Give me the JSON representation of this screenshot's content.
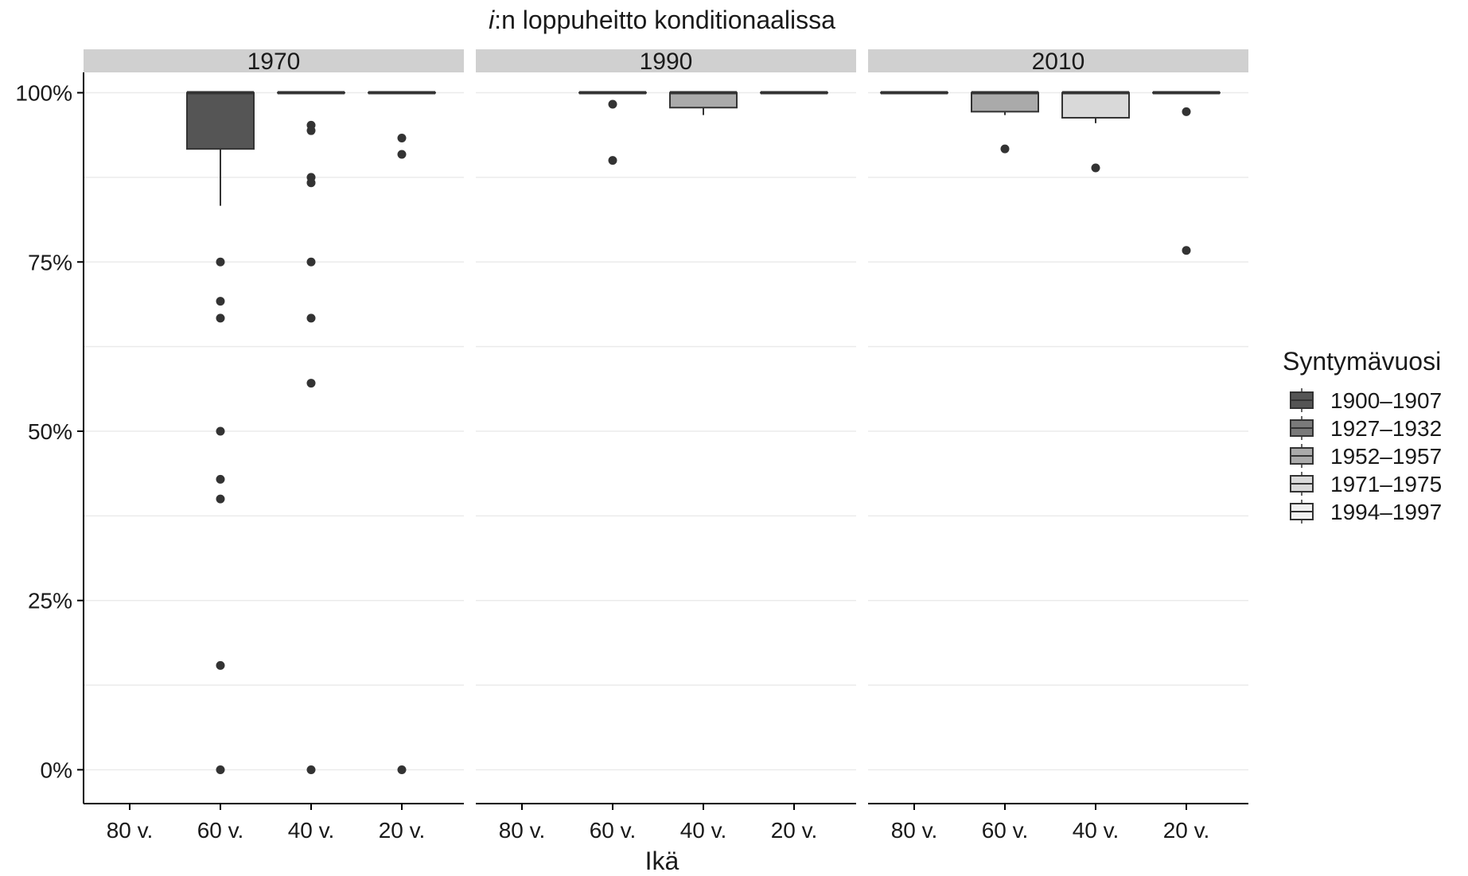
{
  "chart_data": {
    "type": "boxplot",
    "title_italic": "i",
    "title_rest": ":n loppuheitto konditionaalissa",
    "xlabel": "Ikä",
    "ylabel": "",
    "ylim": [
      -0.05,
      1.03
    ],
    "yticks": [
      0,
      0.25,
      0.5,
      0.75,
      1
    ],
    "ytick_labels": [
      "0%",
      "25%",
      "50%",
      "75%",
      "100%"
    ],
    "categories": [
      "80 v.",
      "60 v.",
      "40 v.",
      "20 v."
    ],
    "legend": {
      "title": "Syntymävuosi",
      "position": "right",
      "entries": [
        {
          "label": "1900–1907",
          "fill": "#555555"
        },
        {
          "label": "1927–1932",
          "fill": "#7a7a7a"
        },
        {
          "label": "1952–1957",
          "fill": "#aaaaaa"
        },
        {
          "label": "1971–1975",
          "fill": "#d9d9d9"
        },
        {
          "label": "1994–1997",
          "fill": "#f2f2f2"
        }
      ]
    },
    "panels": [
      {
        "label": "1970",
        "boxes": [
          {
            "category": "60 v.",
            "cohort": "1900–1907",
            "lower_whisker": 0.833,
            "q1": 0.917,
            "median": 1.0,
            "q3": 1.0,
            "upper_whisker": 1.0,
            "outliers": [
              0.75,
              0.692,
              0.667,
              0.5,
              0.429,
              0.4,
              0.154,
              0.0
            ]
          },
          {
            "category": "40 v.",
            "cohort": "1927–1932",
            "lower_whisker": 1.0,
            "q1": 1.0,
            "median": 1.0,
            "q3": 1.0,
            "upper_whisker": 1.0,
            "outliers": [
              0.952,
              0.944,
              0.875,
              0.867,
              0.75,
              0.667,
              0.571,
              0.0
            ]
          },
          {
            "category": "20 v.",
            "cohort": "1952–1957",
            "lower_whisker": 1.0,
            "q1": 1.0,
            "median": 1.0,
            "q3": 1.0,
            "upper_whisker": 1.0,
            "outliers": [
              0.933,
              0.909,
              0.0
            ]
          }
        ]
      },
      {
        "label": "1990",
        "boxes": [
          {
            "category": "60 v.",
            "cohort": "1927–1932",
            "lower_whisker": 1.0,
            "q1": 1.0,
            "median": 1.0,
            "q3": 1.0,
            "upper_whisker": 1.0,
            "outliers": [
              0.983,
              0.9
            ]
          },
          {
            "category": "40 v.",
            "cohort": "1952–1957",
            "lower_whisker": 0.967,
            "q1": 0.978,
            "median": 1.0,
            "q3": 1.0,
            "upper_whisker": 1.0,
            "outliers": []
          },
          {
            "category": "20 v.",
            "cohort": "1971–1975",
            "lower_whisker": 1.0,
            "q1": 1.0,
            "median": 1.0,
            "q3": 1.0,
            "upper_whisker": 1.0,
            "outliers": []
          }
        ]
      },
      {
        "label": "2010",
        "boxes": [
          {
            "category": "80 v.",
            "cohort": "1927–1932",
            "lower_whisker": 1.0,
            "q1": 1.0,
            "median": 1.0,
            "q3": 1.0,
            "upper_whisker": 1.0,
            "outliers": []
          },
          {
            "category": "60 v.",
            "cohort": "1952–1957",
            "lower_whisker": 0.967,
            "q1": 0.972,
            "median": 1.0,
            "q3": 1.0,
            "upper_whisker": 1.0,
            "outliers": [
              0.917
            ]
          },
          {
            "category": "40 v.",
            "cohort": "1971–1975",
            "lower_whisker": 0.955,
            "q1": 0.963,
            "median": 1.0,
            "q3": 1.0,
            "upper_whisker": 1.0,
            "outliers": [
              0.889
            ]
          },
          {
            "category": "20 v.",
            "cohort": "1994–1997",
            "lower_whisker": 1.0,
            "q1": 1.0,
            "median": 1.0,
            "q3": 1.0,
            "upper_whisker": 1.0,
            "outliers": [
              0.972,
              0.767
            ]
          }
        ]
      }
    ]
  }
}
